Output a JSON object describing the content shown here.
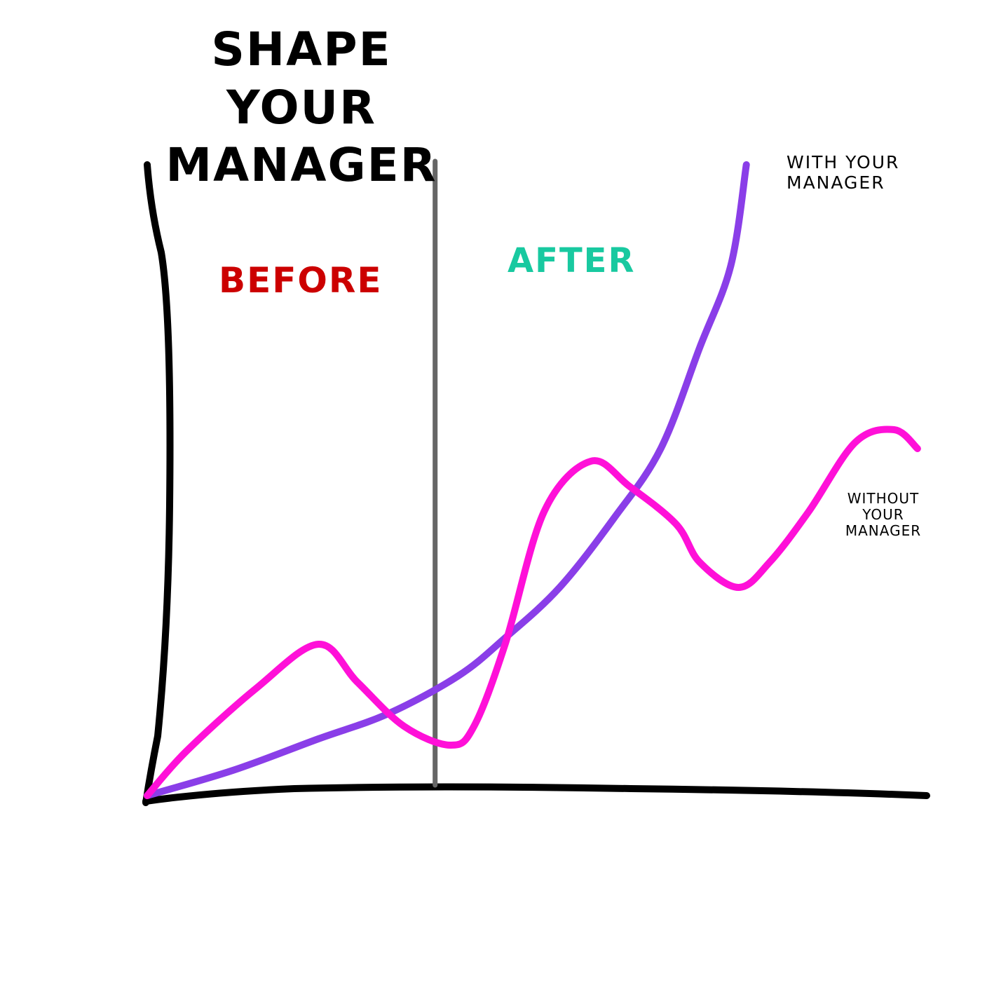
{
  "chart_data": {
    "type": "line",
    "title": "SHAPE YOUR MANAGER",
    "annotations": [
      "BEFORE",
      "AFTER"
    ],
    "divider": 37,
    "xlim": [
      0,
      100
    ],
    "ylim": [
      0,
      100
    ],
    "series": [
      {
        "name": "WITH YOUR MANAGER",
        "color": "#8a3ee8",
        "x": [
          0,
          11,
          22,
          31,
          40,
          46,
          53,
          60,
          66,
          71,
          75,
          77
        ],
        "values": [
          0,
          4,
          9,
          13,
          19,
          25,
          33,
          44,
          55,
          71,
          84,
          100
        ]
      },
      {
        "name": "WITHOUT YOUR MANAGER",
        "color": "#ff10d8",
        "x": [
          0,
          5,
          14,
          22,
          27,
          33,
          39,
          42,
          46,
          51,
          57,
          62,
          68,
          71,
          76,
          80,
          85,
          91,
          96,
          99
        ],
        "values": [
          0,
          7,
          17,
          24,
          18,
          11,
          8,
          11,
          24,
          45,
          53,
          49,
          43,
          37,
          33,
          37,
          45,
          56,
          58,
          55
        ]
      }
    ]
  }
}
